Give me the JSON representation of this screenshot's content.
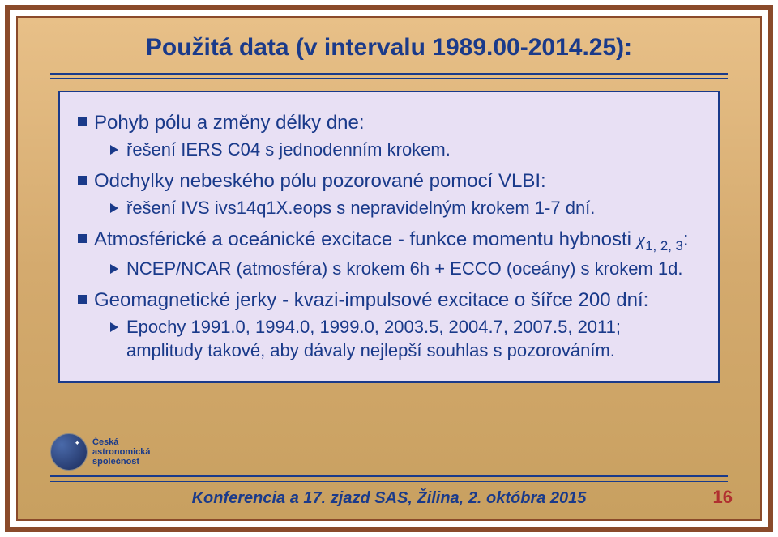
{
  "colors": {
    "frame": "#8a4a2a",
    "title_text": "#1a3a8a",
    "body_text": "#1a3a8a",
    "content_bg": "#e8e0f4",
    "content_border": "#1a3a8a",
    "page_num": "#b03030",
    "slide_bg_gradient": [
      "#e8c088",
      "#c8a060"
    ]
  },
  "title": "Použitá data (v intervalu 1989.00-2014.25):",
  "bullets": [
    {
      "text": "Pohyb pólu a změny délky dne:",
      "sub": [
        "řešení IERS C04 s jednodenním krokem."
      ]
    },
    {
      "text": "Odchylky nebeského pólu pozorované pomocí VLBI:",
      "sub": [
        "řešení IVS ivs14q1X.eops s nepravidelným krokem 1-7 dní."
      ]
    },
    {
      "text_prefix": "Atmosférické a oceánické excitace - funkce momentu hybnosti ",
      "chi_sub": "1, 2, 3",
      "text_suffix": ":",
      "sub": [
        "NCEP/NCAR (atmosféra) s krokem 6h + ECCO (oceány) s krokem 1d."
      ]
    },
    {
      "text": "Geomagnetické jerky - kvazi-impulsové excitace o šířce 200 dní:",
      "sub": [
        "Epochy 1991.0, 1994.0, 1999.0, 2003.5, 2004.7, 2007.5, 2011; amplitudy takové, aby dávaly nejlepší souhlas s pozorováním."
      ]
    }
  ],
  "footer": "Konferencia a 17. zjazd SAS, Žilina, 2. októbra 2015",
  "page_number": "16",
  "logo": {
    "line1": "Česká",
    "line2": "astronomická",
    "line3": "společnost"
  }
}
